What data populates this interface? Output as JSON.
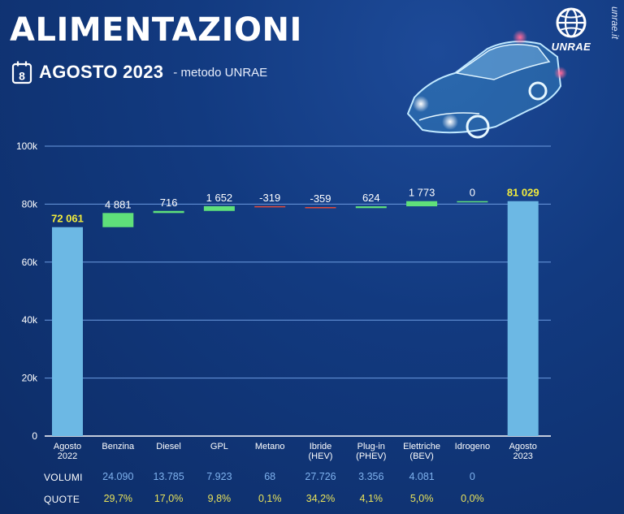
{
  "header": {
    "title": "ALIMENTAZIONI",
    "calendar_day": "8",
    "period": "AGOSTO 2023",
    "method": "- metodo UNRAE",
    "logo_text": "UNRAE",
    "site": "unrae.it"
  },
  "colors": {
    "background": "#123a80",
    "total_bar": "#6cb8e4",
    "increase": "#5fe07a",
    "decrease": "#e04a3a",
    "gridline": "#6d9be0",
    "total_label": "#f2ec3c"
  },
  "chart_data": {
    "type": "bar",
    "subtype": "waterfall",
    "title": "ALIMENTAZIONI",
    "categories": [
      "Agosto\n2022",
      "Benzina",
      "Diesel",
      "GPL",
      "Metano",
      "Ibride\n(HEV)",
      "Plug-in\n(PHEV)",
      "Elettriche\n(BEV)",
      "Idrogeno",
      "Agosto\n2023"
    ],
    "kinds": [
      "total",
      "delta",
      "delta",
      "delta",
      "delta",
      "delta",
      "delta",
      "delta",
      "delta",
      "total"
    ],
    "values": [
      72061,
      4881,
      716,
      1652,
      -319,
      -359,
      624,
      1773,
      0,
      81029
    ],
    "value_labels": [
      "72 061",
      "4 881",
      "716",
      "1 652",
      "-319",
      "-359",
      "624",
      "1 773",
      "0",
      "81 029"
    ],
    "ylim": [
      0,
      100000
    ],
    "yticks": [
      0,
      20000,
      40000,
      60000,
      80000,
      100000
    ],
    "ytick_labels": [
      "0",
      "20k",
      "40k",
      "60k",
      "80k",
      "100k"
    ],
    "grid": true,
    "xlabel": "",
    "ylabel": ""
  },
  "table": {
    "volumes_label": "VOLUMI",
    "shares_label": "QUOTE",
    "volumes": [
      "24.090",
      "13.785",
      "7.923",
      "68",
      "27.726",
      "3.356",
      "4.081",
      "0"
    ],
    "shares": [
      "29,7%",
      "17,0%",
      "9,8%",
      "0,1%",
      "34,2%",
      "4,1%",
      "5,0%",
      "0,0%"
    ]
  }
}
